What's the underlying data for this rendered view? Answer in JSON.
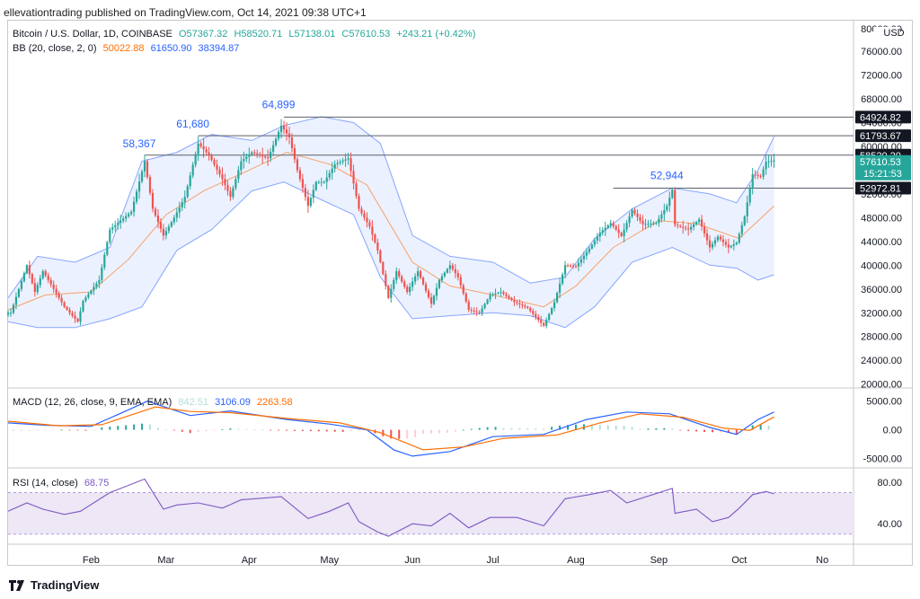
{
  "header": {
    "publisher_line": "ellevationtrading published on TradingView.com, Oct 14, 2021 09:38 UTC+1"
  },
  "main_legend": {
    "symbol": "Bitcoin / U.S. Dollar, 1D, COINBASE",
    "open": "O57367.32",
    "high": "H58520.71",
    "low": "L57138.01",
    "close": "C57610.53",
    "change": "+243.21 (+0.42%)",
    "bb_label": "BB (20, close, 2, 0)",
    "bb_basis": "50022.88",
    "bb_upper": "61650.90",
    "bb_lower": "38394.87"
  },
  "macd_legend": {
    "label": "MACD (12, 26, close, 9, EMA, EMA)",
    "hist": "842.51",
    "macd": "3106.09",
    "signal": "2263.58"
  },
  "rsi_legend": {
    "label": "RSI (14, close)",
    "value": "68.75"
  },
  "footer": {
    "brand": "TradingView"
  },
  "colors": {
    "up": "#26a69a",
    "down": "#ef5350",
    "bb_band": "#2962ff",
    "bb_basis": "#ff6d00",
    "macd": "#2962ff",
    "signal": "#ff6d00",
    "rsi": "#7e57c2",
    "rsi_zone": "#ede7f6"
  },
  "chart_data": [
    {
      "type": "candlestick",
      "title": "Bitcoin / U.S. Dollar, 1D, COINBASE",
      "x_labels": [
        "Feb",
        "Mar",
        "Apr",
        "May",
        "Jun",
        "Jul",
        "Aug",
        "Sep",
        "Oct",
        "No"
      ],
      "y_ticks": [
        20000,
        24000,
        28000,
        32000,
        36000,
        40000,
        44000,
        48000,
        52000,
        56000,
        60000,
        64000,
        68000,
        72000,
        76000
      ],
      "y_top_tick": "80000.00",
      "y_unit": "USD",
      "ylim": [
        19500,
        81000
      ],
      "price_flags": [
        {
          "value": 64924.82,
          "text": "64924.82"
        },
        {
          "value": 61793.67,
          "text": "61793.67"
        },
        {
          "value": 58520.2,
          "text": "58520.20"
        },
        {
          "value": 57610.53,
          "text": "57610.53",
          "subtext": "15:21:53",
          "current": true
        },
        {
          "value": 52972.81,
          "text": "52972.81"
        }
      ],
      "annotations": [
        {
          "text": "58,367",
          "date": "2021-02-21",
          "value": 58367
        },
        {
          "text": "61,680",
          "date": "2021-03-13",
          "value": 61680
        },
        {
          "text": "64,899",
          "date": "2021-04-14",
          "value": 64899
        },
        {
          "text": "52,944",
          "date": "2021-09-06",
          "value": 52944
        }
      ],
      "horizontal_lines": [
        {
          "value": 64924.82,
          "from": "2021-04-14"
        },
        {
          "value": 61793.67,
          "from": "2021-03-13"
        },
        {
          "value": 58520.2,
          "from": "2021-02-21"
        },
        {
          "value": 52972.81,
          "from": "2021-08-15"
        }
      ],
      "close_points": [
        [
          "2021-01-02",
          32000
        ],
        [
          "2021-01-08",
          40000
        ],
        [
          "2021-01-11",
          35500
        ],
        [
          "2021-01-14",
          39000
        ],
        [
          "2021-01-22",
          33000
        ],
        [
          "2021-01-27",
          30500
        ],
        [
          "2021-01-29",
          34000
        ],
        [
          "2021-02-04",
          37500
        ],
        [
          "2021-02-08",
          46000
        ],
        [
          "2021-02-12",
          47500
        ],
        [
          "2021-02-16",
          49000
        ],
        [
          "2021-02-21",
          57500
        ],
        [
          "2021-02-24",
          49500
        ],
        [
          "2021-02-28",
          45000
        ],
        [
          "2021-03-04",
          48000
        ],
        [
          "2021-03-08",
          51500
        ],
        [
          "2021-03-13",
          60500
        ],
        [
          "2021-03-17",
          58500
        ],
        [
          "2021-03-22",
          54500
        ],
        [
          "2021-03-25",
          51500
        ],
        [
          "2021-03-29",
          57500
        ],
        [
          "2021-04-02",
          59000
        ],
        [
          "2021-04-08",
          58000
        ],
        [
          "2021-04-13",
          63500
        ],
        [
          "2021-04-16",
          61500
        ],
        [
          "2021-04-19",
          56000
        ],
        [
          "2021-04-23",
          50000
        ],
        [
          "2021-04-26",
          54000
        ],
        [
          "2021-04-29",
          54000
        ],
        [
          "2021-05-03",
          57000
        ],
        [
          "2021-05-08",
          58000
        ],
        [
          "2021-05-12",
          49500
        ],
        [
          "2021-05-16",
          46500
        ],
        [
          "2021-05-19",
          42500
        ],
        [
          "2021-05-23",
          34500
        ],
        [
          "2021-05-26",
          39000
        ],
        [
          "2021-05-30",
          35500
        ],
        [
          "2021-06-03",
          39000
        ],
        [
          "2021-06-08",
          33500
        ],
        [
          "2021-06-11",
          37500
        ],
        [
          "2021-06-15",
          40000
        ],
        [
          "2021-06-18",
          38000
        ],
        [
          "2021-06-22",
          32500
        ],
        [
          "2021-06-26",
          32000
        ],
        [
          "2021-06-30",
          35000
        ],
        [
          "2021-07-04",
          35500
        ],
        [
          "2021-07-09",
          33800
        ],
        [
          "2021-07-14",
          32800
        ],
        [
          "2021-07-20",
          29800
        ],
        [
          "2021-07-24",
          33800
        ],
        [
          "2021-07-28",
          40000
        ],
        [
          "2021-08-01",
          39800
        ],
        [
          "2021-08-06",
          42800
        ],
        [
          "2021-08-10",
          45500
        ],
        [
          "2021-08-14",
          47100
        ],
        [
          "2021-08-18",
          44900
        ],
        [
          "2021-08-22",
          49300
        ],
        [
          "2021-08-26",
          46900
        ],
        [
          "2021-08-31",
          47100
        ],
        [
          "2021-09-04",
          50000
        ],
        [
          "2021-09-06",
          52700
        ],
        [
          "2021-09-07",
          46800
        ],
        [
          "2021-09-12",
          46000
        ],
        [
          "2021-09-16",
          47700
        ],
        [
          "2021-09-20",
          43000
        ],
        [
          "2021-09-23",
          44800
        ],
        [
          "2021-09-27",
          43000
        ],
        [
          "2021-09-30",
          43800
        ],
        [
          "2021-10-03",
          48200
        ],
        [
          "2021-10-06",
          55300
        ],
        [
          "2021-10-09",
          54900
        ],
        [
          "2021-10-11",
          57400
        ],
        [
          "2021-10-14",
          57610
        ]
      ],
      "bb_upper_points": [
        [
          "2021-01-01",
          34500
        ],
        [
          "2021-01-12",
          41500
        ],
        [
          "2021-01-26",
          40500
        ],
        [
          "2021-02-08",
          43000
        ],
        [
          "2021-02-20",
          57500
        ],
        [
          "2021-03-05",
          59000
        ],
        [
          "2021-03-18",
          62000
        ],
        [
          "2021-04-02",
          61000
        ],
        [
          "2021-04-14",
          63500
        ],
        [
          "2021-04-28",
          65000
        ],
        [
          "2021-05-10",
          64000
        ],
        [
          "2021-05-20",
          60500
        ],
        [
          "2021-06-01",
          45000
        ],
        [
          "2021-06-15",
          41500
        ],
        [
          "2021-07-01",
          40500
        ],
        [
          "2021-07-15",
          37000
        ],
        [
          "2021-07-28",
          38000
        ],
        [
          "2021-08-08",
          44500
        ],
        [
          "2021-08-22",
          49500
        ],
        [
          "2021-09-06",
          53000
        ],
        [
          "2021-09-20",
          52000
        ],
        [
          "2021-09-30",
          50500
        ],
        [
          "2021-10-08",
          56000
        ],
        [
          "2021-10-14",
          61650
        ]
      ],
      "bb_lower_points": [
        [
          "2021-01-01",
          30500
        ],
        [
          "2021-01-12",
          29500
        ],
        [
          "2021-01-26",
          29500
        ],
        [
          "2021-02-08",
          31000
        ],
        [
          "2021-02-20",
          33000
        ],
        [
          "2021-03-05",
          42500
        ],
        [
          "2021-03-18",
          46000
        ],
        [
          "2021-04-02",
          52500
        ],
        [
          "2021-04-14",
          54000
        ],
        [
          "2021-04-28",
          51000
        ],
        [
          "2021-05-10",
          48500
        ],
        [
          "2021-05-20",
          38000
        ],
        [
          "2021-06-01",
          31000
        ],
        [
          "2021-06-15",
          31500
        ],
        [
          "2021-07-01",
          32000
        ],
        [
          "2021-07-15",
          31500
        ],
        [
          "2021-07-28",
          29500
        ],
        [
          "2021-08-08",
          33000
        ],
        [
          "2021-08-22",
          40500
        ],
        [
          "2021-09-06",
          43000
        ],
        [
          "2021-09-20",
          40000
        ],
        [
          "2021-09-30",
          39500
        ],
        [
          "2021-10-08",
          37500
        ],
        [
          "2021-10-14",
          38400
        ]
      ],
      "bb_basis_points": [
        [
          "2021-01-01",
          32500
        ],
        [
          "2021-01-15",
          35000
        ],
        [
          "2021-02-01",
          35500
        ],
        [
          "2021-02-15",
          41000
        ],
        [
          "2021-03-01",
          48500
        ],
        [
          "2021-03-15",
          52500
        ],
        [
          "2021-04-01",
          56000
        ],
        [
          "2021-04-15",
          59000
        ],
        [
          "2021-05-01",
          57000
        ],
        [
          "2021-05-15",
          53500
        ],
        [
          "2021-06-01",
          40500
        ],
        [
          "2021-06-15",
          36500
        ],
        [
          "2021-07-01",
          35000
        ],
        [
          "2021-07-20",
          33000
        ],
        [
          "2021-08-01",
          36500
        ],
        [
          "2021-08-15",
          43000
        ],
        [
          "2021-09-01",
          47500
        ],
        [
          "2021-09-15",
          47000
        ],
        [
          "2021-10-01",
          44500
        ],
        [
          "2021-10-14",
          50000
        ]
      ]
    },
    {
      "type": "macd",
      "title": "MACD (12, 26, close, 9, EMA, EMA)",
      "y_ticks": [
        "5000.00",
        "0.00",
        "-5000.00"
      ],
      "ylim": [
        -6500,
        7000
      ],
      "macd_points": [
        [
          "2021-01-01",
          1200
        ],
        [
          "2021-01-15",
          800
        ],
        [
          "2021-02-01",
          600
        ],
        [
          "2021-02-15",
          3500
        ],
        [
          "2021-02-22",
          5000
        ],
        [
          "2021-03-10",
          2500
        ],
        [
          "2021-03-25",
          3300
        ],
        [
          "2021-04-15",
          1800
        ],
        [
          "2021-05-01",
          1000
        ],
        [
          "2021-05-15",
          0
        ],
        [
          "2021-05-25",
          -3500
        ],
        [
          "2021-06-01",
          -4600
        ],
        [
          "2021-06-15",
          -3800
        ],
        [
          "2021-07-01",
          -1200
        ],
        [
          "2021-07-20",
          -800
        ],
        [
          "2021-08-05",
          1800
        ],
        [
          "2021-08-20",
          3100
        ],
        [
          "2021-09-05",
          2800
        ],
        [
          "2021-09-20",
          400
        ],
        [
          "2021-09-30",
          -800
        ],
        [
          "2021-10-08",
          1800
        ],
        [
          "2021-10-14",
          3106
        ]
      ],
      "signal_points": [
        [
          "2021-01-01",
          1500
        ],
        [
          "2021-01-20",
          700
        ],
        [
          "2021-02-05",
          900
        ],
        [
          "2021-02-25",
          4000
        ],
        [
          "2021-03-10",
          3200
        ],
        [
          "2021-03-25",
          3000
        ],
        [
          "2021-04-15",
          2000
        ],
        [
          "2021-05-05",
          1200
        ],
        [
          "2021-05-20",
          -500
        ],
        [
          "2021-06-05",
          -3500
        ],
        [
          "2021-06-20",
          -3000
        ],
        [
          "2021-07-05",
          -1500
        ],
        [
          "2021-07-25",
          -900
        ],
        [
          "2021-08-10",
          1200
        ],
        [
          "2021-08-25",
          2800
        ],
        [
          "2021-09-10",
          2200
        ],
        [
          "2021-09-25",
          300
        ],
        [
          "2021-10-05",
          -100
        ],
        [
          "2021-10-14",
          2264
        ]
      ],
      "histogram_last": 842.51
    },
    {
      "type": "line",
      "title": "RSI (14, close)",
      "y_ticks": [
        "80.00",
        "40.00"
      ],
      "ylim": [
        22,
        92
      ],
      "band": [
        30,
        70
      ],
      "rsi_points": [
        [
          "2021-01-01",
          52
        ],
        [
          "2021-01-08",
          60
        ],
        [
          "2021-01-14",
          54
        ],
        [
          "2021-01-22",
          49
        ],
        [
          "2021-01-28",
          52
        ],
        [
          "2021-02-08",
          70
        ],
        [
          "2021-02-21",
          83
        ],
        [
          "2021-02-28",
          54
        ],
        [
          "2021-03-05",
          58
        ],
        [
          "2021-03-13",
          60
        ],
        [
          "2021-03-22",
          55
        ],
        [
          "2021-03-29",
          63
        ],
        [
          "2021-04-13",
          66
        ],
        [
          "2021-04-23",
          45
        ],
        [
          "2021-05-01",
          52
        ],
        [
          "2021-05-08",
          60
        ],
        [
          "2021-05-12",
          42
        ],
        [
          "2021-05-19",
          32
        ],
        [
          "2021-05-23",
          28
        ],
        [
          "2021-06-01",
          40
        ],
        [
          "2021-06-08",
          38
        ],
        [
          "2021-06-15",
          50
        ],
        [
          "2021-06-22",
          36
        ],
        [
          "2021-06-30",
          46
        ],
        [
          "2021-07-10",
          46
        ],
        [
          "2021-07-20",
          38
        ],
        [
          "2021-07-28",
          64
        ],
        [
          "2021-08-06",
          68
        ],
        [
          "2021-08-14",
          72
        ],
        [
          "2021-08-20",
          60
        ],
        [
          "2021-09-06",
          74
        ],
        [
          "2021-09-07",
          50
        ],
        [
          "2021-09-15",
          54
        ],
        [
          "2021-09-21",
          42
        ],
        [
          "2021-09-27",
          46
        ],
        [
          "2021-10-01",
          55
        ],
        [
          "2021-10-06",
          68
        ],
        [
          "2021-10-11",
          71
        ],
        [
          "2021-10-14",
          68.75
        ]
      ]
    }
  ]
}
